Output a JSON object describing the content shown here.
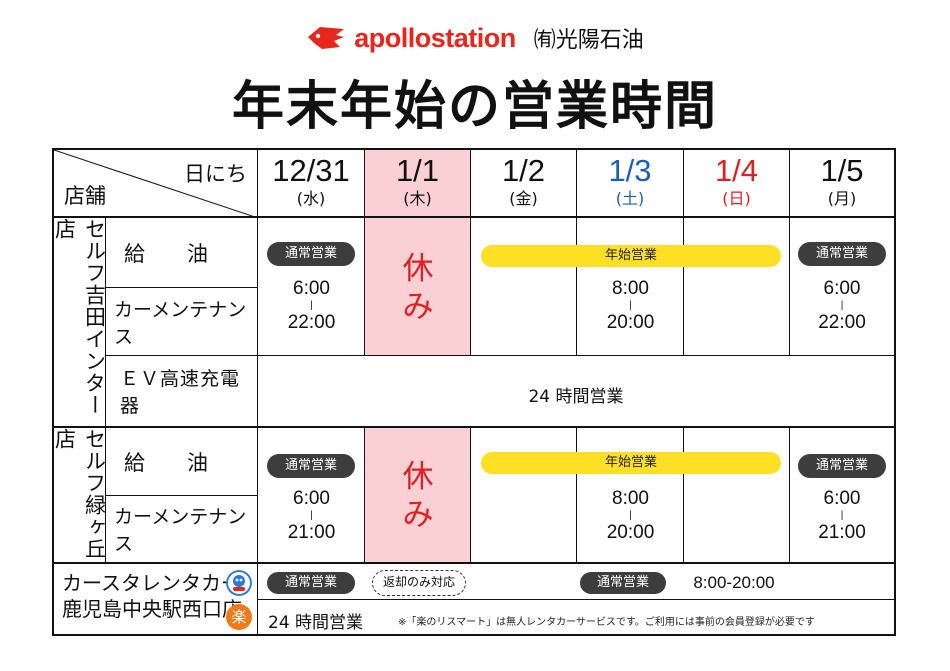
{
  "brand": {
    "logo_text": "apollostation",
    "company": "㈲光陽石油"
  },
  "title": "年末年始の営業時間",
  "header": {
    "corner_top": "日にち",
    "corner_bottom": "店舗"
  },
  "dates": [
    {
      "date": "12/31",
      "weekday": "(水)"
    },
    {
      "date": "1/1",
      "weekday": "(木)"
    },
    {
      "date": "1/2",
      "weekday": "(金)"
    },
    {
      "date": "1/3",
      "weekday": "(土)"
    },
    {
      "date": "1/4",
      "weekday": "(日)"
    },
    {
      "date": "1/5",
      "weekday": "(月)"
    }
  ],
  "store1": {
    "name": "セルフ吉田インター店",
    "fuel": "給　　油",
    "maintenance": "カーメンテナンス",
    "ev": "ＥＶ高速充電器",
    "normal_badge": "通常営業",
    "newyear_badge": "年始営業",
    "closed": "休み",
    "d1231": {
      "open": "6:00",
      "sep": "|",
      "close": "22:00"
    },
    "d0103": {
      "open": "8:00",
      "sep": "|",
      "close": "20:00"
    },
    "d0105": {
      "open": "6:00",
      "sep": "|",
      "close": "22:00"
    },
    "ev_hours": "24 時間営業"
  },
  "store2": {
    "name": "セルフ緑ヶ丘店",
    "fuel": "給　　油",
    "maintenance": "カーメンテナンス",
    "normal_badge": "通常営業",
    "newyear_badge": "年始営業",
    "closed": "休み",
    "d1231": {
      "open": "6:00",
      "sep": "|",
      "close": "21:00"
    },
    "d0103": {
      "open": "8:00",
      "sep": "|",
      "close": "20:00"
    },
    "d0105": {
      "open": "6:00",
      "sep": "|",
      "close": "21:00"
    }
  },
  "rental": {
    "name_line1": "カースタレンタカー",
    "name_line2": "鹿児島中央駅西口店",
    "normal_badge": "通常営業",
    "return_only": "返却のみ対応",
    "hours_badge": "通常営業",
    "hours": "8:00-20:00",
    "raku_hours": "24 時間営業",
    "raku_icon_char": "楽",
    "note": "※「楽のリスマート」は無人レンタカーサービスです。ご利用には事前の会員登録が必要です"
  },
  "colors": {
    "brand_red": "#e8261d",
    "holiday_pink": "#fad0d4",
    "saturday_blue": "#1a5fb4",
    "sunday_red": "#e02020",
    "badge_yellow": "#fde024",
    "badge_dark": "#3d3d3d"
  }
}
